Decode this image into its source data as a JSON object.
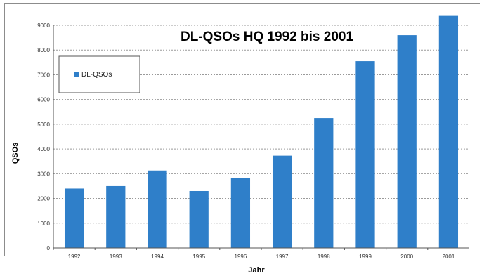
{
  "chart_data": {
    "type": "bar",
    "title": "DL-QSOs HQ 1992 bis 2001",
    "xlabel": "Jahr",
    "ylabel": "QSOs",
    "categories": [
      "1992",
      "1993",
      "1994",
      "1995",
      "1996",
      "1997",
      "1998",
      "1999",
      "2000",
      "2001"
    ],
    "series": [
      {
        "name": "DL-QSOs",
        "values": [
          2400,
          2500,
          3130,
          2300,
          2830,
          3730,
          5250,
          7550,
          8600,
          9380
        ]
      }
    ],
    "ylim": [
      0,
      9000
    ],
    "yticks": [
      0,
      1000,
      2000,
      3000,
      4000,
      5000,
      6000,
      7000,
      8000,
      9000
    ],
    "ytick_labels": [
      "0",
      "1000",
      "2000",
      "3000",
      "4000",
      "5000",
      "6000",
      "7000",
      "8000",
      "9000"
    ],
    "grid": true,
    "legend_position": "top-left",
    "bar_color": "#2f7fc9"
  }
}
